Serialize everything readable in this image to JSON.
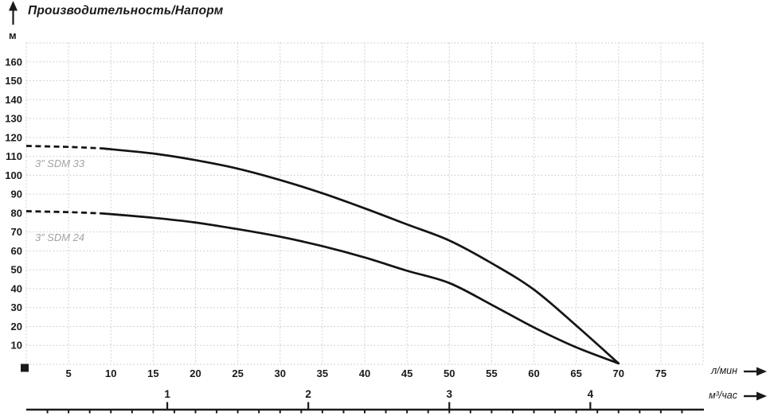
{
  "title": "Производительность/Напорм",
  "axis": {
    "y_unit": "м",
    "x_unit_primary": "л/мин",
    "x_unit_secondary": "м³/час"
  },
  "colors": {
    "curve": "#141414",
    "grid": "#c6c6c6",
    "tick_text": "#1a1a1a",
    "series_label": "#a3a3a3",
    "axis_line": "#1a1a1a"
  },
  "chart_data": {
    "type": "line",
    "title": "Производительность/Напорм",
    "ylabel": "м",
    "xlabel_primary": "л/мин",
    "xlabel_secondary": "м³/час",
    "xlim": [
      0,
      80
    ],
    "ylim": [
      0,
      170
    ],
    "x_grid_step_lmin": 5,
    "y_grid_step_m": 10,
    "grid": "dashed",
    "x_ticks_lmin": [
      5,
      10,
      15,
      20,
      25,
      30,
      35,
      40,
      45,
      50,
      55,
      60,
      65,
      70,
      75
    ],
    "y_ticks_m": [
      10,
      20,
      30,
      40,
      50,
      60,
      70,
      80,
      90,
      100,
      110,
      120,
      130,
      140,
      150,
      160
    ],
    "secondary_axis_m3h": {
      "ticks": [
        1,
        2,
        3,
        4
      ],
      "lmin_per_unit": 16.6667,
      "minor_tick_step_lmin": 2.5
    },
    "legend_position": "labels-on-plot-left",
    "series": [
      {
        "name": "3” SDM 33",
        "dash_until_lmin": 9,
        "points_lmin_m": [
          [
            0,
            115.5
          ],
          [
            5,
            115
          ],
          [
            9,
            114.2
          ],
          [
            15,
            111.5
          ],
          [
            20,
            108
          ],
          [
            25,
            103.5
          ],
          [
            30,
            97.5
          ],
          [
            35,
            90.5
          ],
          [
            40,
            82.5
          ],
          [
            45,
            74
          ],
          [
            50,
            65.5
          ],
          [
            55,
            53.5
          ],
          [
            60,
            39.5
          ],
          [
            65,
            20.5
          ],
          [
            70,
            0.5
          ]
        ]
      },
      {
        "name": "3” SDM 24",
        "dash_until_lmin": 9,
        "points_lmin_m": [
          [
            0,
            81
          ],
          [
            5,
            80.5
          ],
          [
            9,
            79.8
          ],
          [
            15,
            77.5
          ],
          [
            20,
            75
          ],
          [
            25,
            71.5
          ],
          [
            30,
            67.5
          ],
          [
            35,
            62.5
          ],
          [
            40,
            56.5
          ],
          [
            45,
            49.5
          ],
          [
            50,
            43
          ],
          [
            55,
            31.5
          ],
          [
            60,
            19.5
          ],
          [
            65,
            9
          ],
          [
            70,
            0.5
          ]
        ]
      }
    ]
  }
}
